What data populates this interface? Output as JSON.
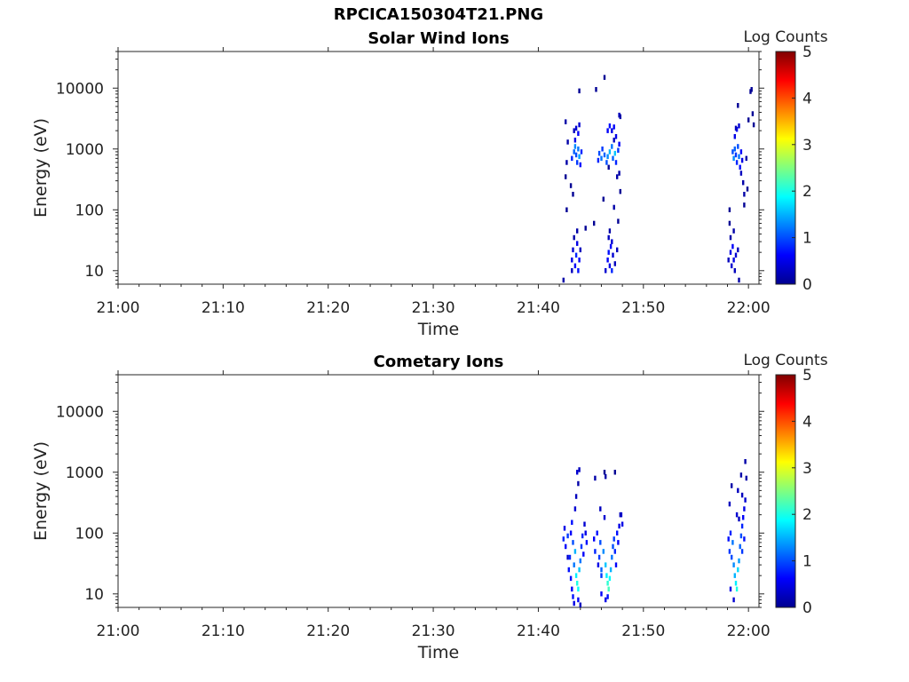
{
  "figure": {
    "title": "RPCICA150304T21.PNG"
  },
  "chart_data": [
    {
      "type": "heatmap",
      "title": "Solar Wind Ions",
      "xlabel": "Time",
      "ylabel": "Energy (eV)",
      "x_ticks": [
        "21:00",
        "21:10",
        "21:20",
        "21:30",
        "21:40",
        "21:50",
        "22:00"
      ],
      "y_ticks": [
        "10",
        "100",
        "1000",
        "10000"
      ],
      "y_scale": "log",
      "xlim": [
        "21:00",
        "22:01"
      ],
      "ylim": [
        6,
        40000
      ],
      "colorbar": {
        "label": "Log Counts",
        "min": 0,
        "max": 5,
        "ticks": [
          "0",
          "1",
          "2",
          "3",
          "4",
          "5"
        ],
        "colormap": "jet"
      },
      "cells_note": "time in minutes after 21:00, energy in eV, value in log counts",
      "cells": [
        [
          42.4,
          7,
          0.2
        ],
        [
          43.2,
          10,
          0.3
        ],
        [
          43.2,
          15,
          0.5
        ],
        [
          43.3,
          22,
          0.4
        ],
        [
          43.5,
          12,
          0.6
        ],
        [
          43.6,
          18,
          0.8
        ],
        [
          43.7,
          28,
          0.5
        ],
        [
          43.8,
          10,
          0.7
        ],
        [
          43.9,
          15,
          0.6
        ],
        [
          44.0,
          22,
          0.3
        ],
        [
          43.4,
          35,
          0.2
        ],
        [
          43.7,
          45,
          0.2
        ],
        [
          43.2,
          700,
          0.8
        ],
        [
          43.4,
          900,
          1.1
        ],
        [
          43.5,
          1100,
          1.3
        ],
        [
          43.6,
          800,
          1.0
        ],
        [
          43.7,
          600,
          0.9
        ],
        [
          43.8,
          1000,
          1.2
        ],
        [
          43.9,
          750,
          1.4
        ],
        [
          44.0,
          550,
          0.7
        ],
        [
          44.1,
          900,
          0.8
        ],
        [
          43.5,
          1400,
          0.5
        ],
        [
          43.6,
          2200,
          0.4
        ],
        [
          43.8,
          1800,
          0.6
        ],
        [
          43.9,
          2500,
          0.4
        ],
        [
          43.4,
          2000,
          0.3
        ],
        [
          42.6,
          2800,
          0.2
        ],
        [
          42.8,
          1300,
          0.2
        ],
        [
          42.7,
          600,
          0.2
        ],
        [
          43.1,
          250,
          0.1
        ],
        [
          43.3,
          180,
          0.1
        ],
        [
          42.6,
          350,
          0.1
        ],
        [
          43.9,
          9000,
          0.1
        ],
        [
          45.5,
          9500,
          0.1
        ],
        [
          42.7,
          100,
          0.1
        ],
        [
          46.4,
          10,
          0.4
        ],
        [
          46.6,
          15,
          0.6
        ],
        [
          46.7,
          20,
          0.7
        ],
        [
          46.8,
          12,
          0.5
        ],
        [
          46.9,
          25,
          0.6
        ],
        [
          47.0,
          10,
          0.8
        ],
        [
          47.1,
          18,
          0.4
        ],
        [
          47.3,
          13,
          0.3
        ],
        [
          47.5,
          22,
          0.3
        ],
        [
          46.7,
          35,
          0.3
        ],
        [
          47.0,
          30,
          0.4
        ],
        [
          46.8,
          45,
          0.2
        ],
        [
          45.7,
          650,
          0.8
        ],
        [
          45.8,
          850,
          1.0
        ],
        [
          46.0,
          700,
          1.2
        ],
        [
          46.1,
          1000,
          0.9
        ],
        [
          46.3,
          800,
          1.1
        ],
        [
          46.5,
          600,
          1.0
        ],
        [
          46.6,
          750,
          1.3
        ],
        [
          46.8,
          900,
          1.5
        ],
        [
          47.0,
          1100,
          1.2
        ],
        [
          47.1,
          700,
          1.1
        ],
        [
          47.3,
          850,
          1.6
        ],
        [
          47.4,
          600,
          0.8
        ],
        [
          47.6,
          950,
          0.9
        ],
        [
          47.7,
          1200,
          0.6
        ],
        [
          46.6,
          2000,
          0.6
        ],
        [
          46.8,
          2400,
          0.7
        ],
        [
          47.0,
          2000,
          0.5
        ],
        [
          47.2,
          2300,
          0.6
        ],
        [
          47.4,
          1600,
          0.5
        ],
        [
          47.7,
          3600,
          0.3
        ],
        [
          47.8,
          3400,
          0.2
        ],
        [
          47.2,
          1400,
          0.3
        ],
        [
          47.5,
          350,
          0.2
        ],
        [
          47.7,
          400,
          0.2
        ],
        [
          46.2,
          150,
          0.1
        ],
        [
          47.2,
          110,
          0.2
        ],
        [
          47.6,
          65,
          0.1
        ],
        [
          45.3,
          60,
          0.1
        ],
        [
          44.5,
          50,
          0.1
        ],
        [
          46.7,
          500,
          0.1
        ],
        [
          46.3,
          15000,
          0.1
        ],
        [
          47.8,
          200,
          0.1
        ],
        [
          58.1,
          15,
          0.3
        ],
        [
          58.3,
          20,
          0.5
        ],
        [
          58.4,
          12,
          0.4
        ],
        [
          58.5,
          25,
          0.6
        ],
        [
          58.6,
          15,
          0.5
        ],
        [
          58.7,
          10,
          0.3
        ],
        [
          58.8,
          18,
          0.4
        ],
        [
          59.0,
          22,
          0.3
        ],
        [
          59.1,
          7,
          0.2
        ],
        [
          58.3,
          35,
          0.2
        ],
        [
          58.6,
          45,
          0.2
        ],
        [
          58.2,
          60,
          0.1
        ],
        [
          58.2,
          100,
          0.1
        ],
        [
          58.5,
          900,
          1.0
        ],
        [
          58.6,
          700,
          1.3
        ],
        [
          58.7,
          1000,
          1.1
        ],
        [
          58.8,
          800,
          0.9
        ],
        [
          58.9,
          600,
          0.8
        ],
        [
          59.0,
          1100,
          1.0
        ],
        [
          59.1,
          750,
          1.2
        ],
        [
          59.2,
          500,
          0.7
        ],
        [
          59.3,
          900,
          0.6
        ],
        [
          59.4,
          650,
          0.5
        ],
        [
          58.7,
          1600,
          0.5
        ],
        [
          58.9,
          2100,
          0.6
        ],
        [
          59.1,
          2400,
          0.4
        ],
        [
          58.8,
          2200,
          0.3
        ],
        [
          59.3,
          400,
          0.3
        ],
        [
          59.5,
          280,
          0.2
        ],
        [
          59.6,
          180,
          0.2
        ],
        [
          59.6,
          120,
          0.1
        ],
        [
          59.0,
          5200,
          0.1
        ],
        [
          60.2,
          8800,
          0.1
        ],
        [
          60.4,
          3800,
          0.1
        ],
        [
          60.0,
          3000,
          0.1
        ],
        [
          59.8,
          700,
          0.2
        ],
        [
          59.9,
          220,
          0.1
        ],
        [
          60.3,
          9500,
          0.1
        ],
        [
          60.5,
          2500,
          0.1
        ]
      ]
    },
    {
      "type": "heatmap",
      "title": "Cometary Ions",
      "xlabel": "Time",
      "ylabel": "Energy (eV)",
      "x_ticks": [
        "21:00",
        "21:10",
        "21:20",
        "21:30",
        "21:40",
        "21:50",
        "22:00"
      ],
      "y_ticks": [
        "10",
        "100",
        "1000",
        "10000"
      ],
      "y_scale": "log",
      "xlim": [
        "21:00",
        "22:01"
      ],
      "ylim": [
        6,
        40000
      ],
      "colorbar": {
        "label": "Log Counts",
        "min": 0,
        "max": 5,
        "ticks": [
          "0",
          "1",
          "2",
          "3",
          "4",
          "5"
        ],
        "colormap": "jet"
      },
      "cells_note": "time in minutes after 21:00, energy in eV, value in log counts",
      "cells": [
        [
          42.4,
          80,
          0.8
        ],
        [
          42.5,
          120,
          0.5
        ],
        [
          42.6,
          60,
          0.6
        ],
        [
          42.8,
          90,
          0.9
        ],
        [
          43.0,
          40,
          0.8
        ],
        [
          43.1,
          100,
          0.6
        ],
        [
          42.9,
          25,
          0.7
        ],
        [
          43.2,
          150,
          0.7
        ],
        [
          43.3,
          70,
          1.0
        ],
        [
          43.4,
          30,
          1.2
        ],
        [
          43.5,
          50,
          1.5
        ],
        [
          43.6,
          20,
          1.8
        ],
        [
          43.7,
          15,
          2.0
        ],
        [
          43.8,
          12,
          1.9
        ],
        [
          43.9,
          25,
          1.6
        ],
        [
          44.0,
          35,
          1.2
        ],
        [
          44.1,
          60,
          0.9
        ],
        [
          44.2,
          90,
          0.8
        ],
        [
          43.2,
          12,
          0.6
        ],
        [
          43.3,
          9,
          0.7
        ],
        [
          43.4,
          7,
          0.5
        ],
        [
          43.8,
          8,
          0.6
        ],
        [
          44.0,
          6,
          0.3
        ],
        [
          43.5,
          250,
          0.4
        ],
        [
          43.6,
          400,
          0.3
        ],
        [
          43.7,
          1000,
          0.4
        ],
        [
          43.9,
          1100,
          0.3
        ],
        [
          43.8,
          650,
          0.2
        ],
        [
          42.8,
          40,
          0.4
        ],
        [
          43.1,
          18,
          0.7
        ],
        [
          44.3,
          45,
          0.6
        ],
        [
          44.4,
          140,
          0.4
        ],
        [
          44.5,
          100,
          0.5
        ],
        [
          44.6,
          70,
          0.7
        ],
        [
          45.3,
          80,
          0.6
        ],
        [
          45.4,
          50,
          0.8
        ],
        [
          45.6,
          100,
          0.7
        ],
        [
          45.8,
          40,
          0.9
        ],
        [
          45.9,
          70,
          1.0
        ],
        [
          46.0,
          25,
          1.1
        ],
        [
          46.2,
          50,
          1.3
        ],
        [
          46.4,
          30,
          1.6
        ],
        [
          46.5,
          20,
          1.8
        ],
        [
          46.6,
          15,
          2.1
        ],
        [
          46.7,
          12,
          2.2
        ],
        [
          46.8,
          18,
          1.9
        ],
        [
          46.9,
          25,
          1.5
        ],
        [
          47.0,
          40,
          1.2
        ],
        [
          47.1,
          60,
          1.0
        ],
        [
          47.2,
          80,
          0.9
        ],
        [
          47.3,
          50,
          0.8
        ],
        [
          47.5,
          100,
          0.7
        ],
        [
          47.6,
          70,
          0.6
        ],
        [
          47.7,
          130,
          0.5
        ],
        [
          47.9,
          200,
          0.4
        ],
        [
          48.0,
          140,
          0.5
        ],
        [
          46.0,
          10,
          0.6
        ],
        [
          46.4,
          8,
          0.5
        ],
        [
          46.6,
          9,
          0.7
        ],
        [
          45.9,
          250,
          0.3
        ],
        [
          45.4,
          800,
          0.2
        ],
        [
          46.4,
          850,
          0.2
        ],
        [
          46.0,
          20,
          0.9
        ],
        [
          45.7,
          30,
          0.5
        ],
        [
          47.4,
          30,
          0.6
        ],
        [
          47.8,
          200,
          0.3
        ],
        [
          46.3,
          180,
          0.4
        ],
        [
          47.3,
          1000,
          0.1
        ],
        [
          46.3,
          1000,
          0.1
        ],
        [
          58.1,
          80,
          0.7
        ],
        [
          58.2,
          50,
          0.9
        ],
        [
          58.3,
          100,
          0.8
        ],
        [
          58.4,
          40,
          1.0
        ],
        [
          58.5,
          70,
          1.2
        ],
        [
          58.6,
          30,
          1.3
        ],
        [
          58.7,
          20,
          1.5
        ],
        [
          58.8,
          15,
          1.8
        ],
        [
          58.9,
          12,
          2.0
        ],
        [
          59.0,
          25,
          1.7
        ],
        [
          59.1,
          35,
          1.4
        ],
        [
          59.2,
          60,
          1.1
        ],
        [
          59.3,
          90,
          1.0
        ],
        [
          59.4,
          130,
          0.8
        ],
        [
          59.5,
          180,
          0.6
        ],
        [
          59.6,
          250,
          0.5
        ],
        [
          59.7,
          350,
          0.4
        ],
        [
          59.4,
          50,
          0.9
        ],
        [
          59.6,
          80,
          0.7
        ],
        [
          58.3,
          12,
          0.5
        ],
        [
          58.6,
          8,
          0.4
        ],
        [
          58.2,
          300,
          0.3
        ],
        [
          58.4,
          600,
          0.2
        ],
        [
          59.0,
          500,
          0.3
        ],
        [
          59.3,
          900,
          0.2
        ],
        [
          59.4,
          420,
          0.3
        ],
        [
          59.7,
          1500,
          0.2
        ],
        [
          59.8,
          800,
          0.2
        ],
        [
          58.9,
          200,
          0.4
        ],
        [
          59.1,
          170,
          0.3
        ]
      ]
    }
  ]
}
